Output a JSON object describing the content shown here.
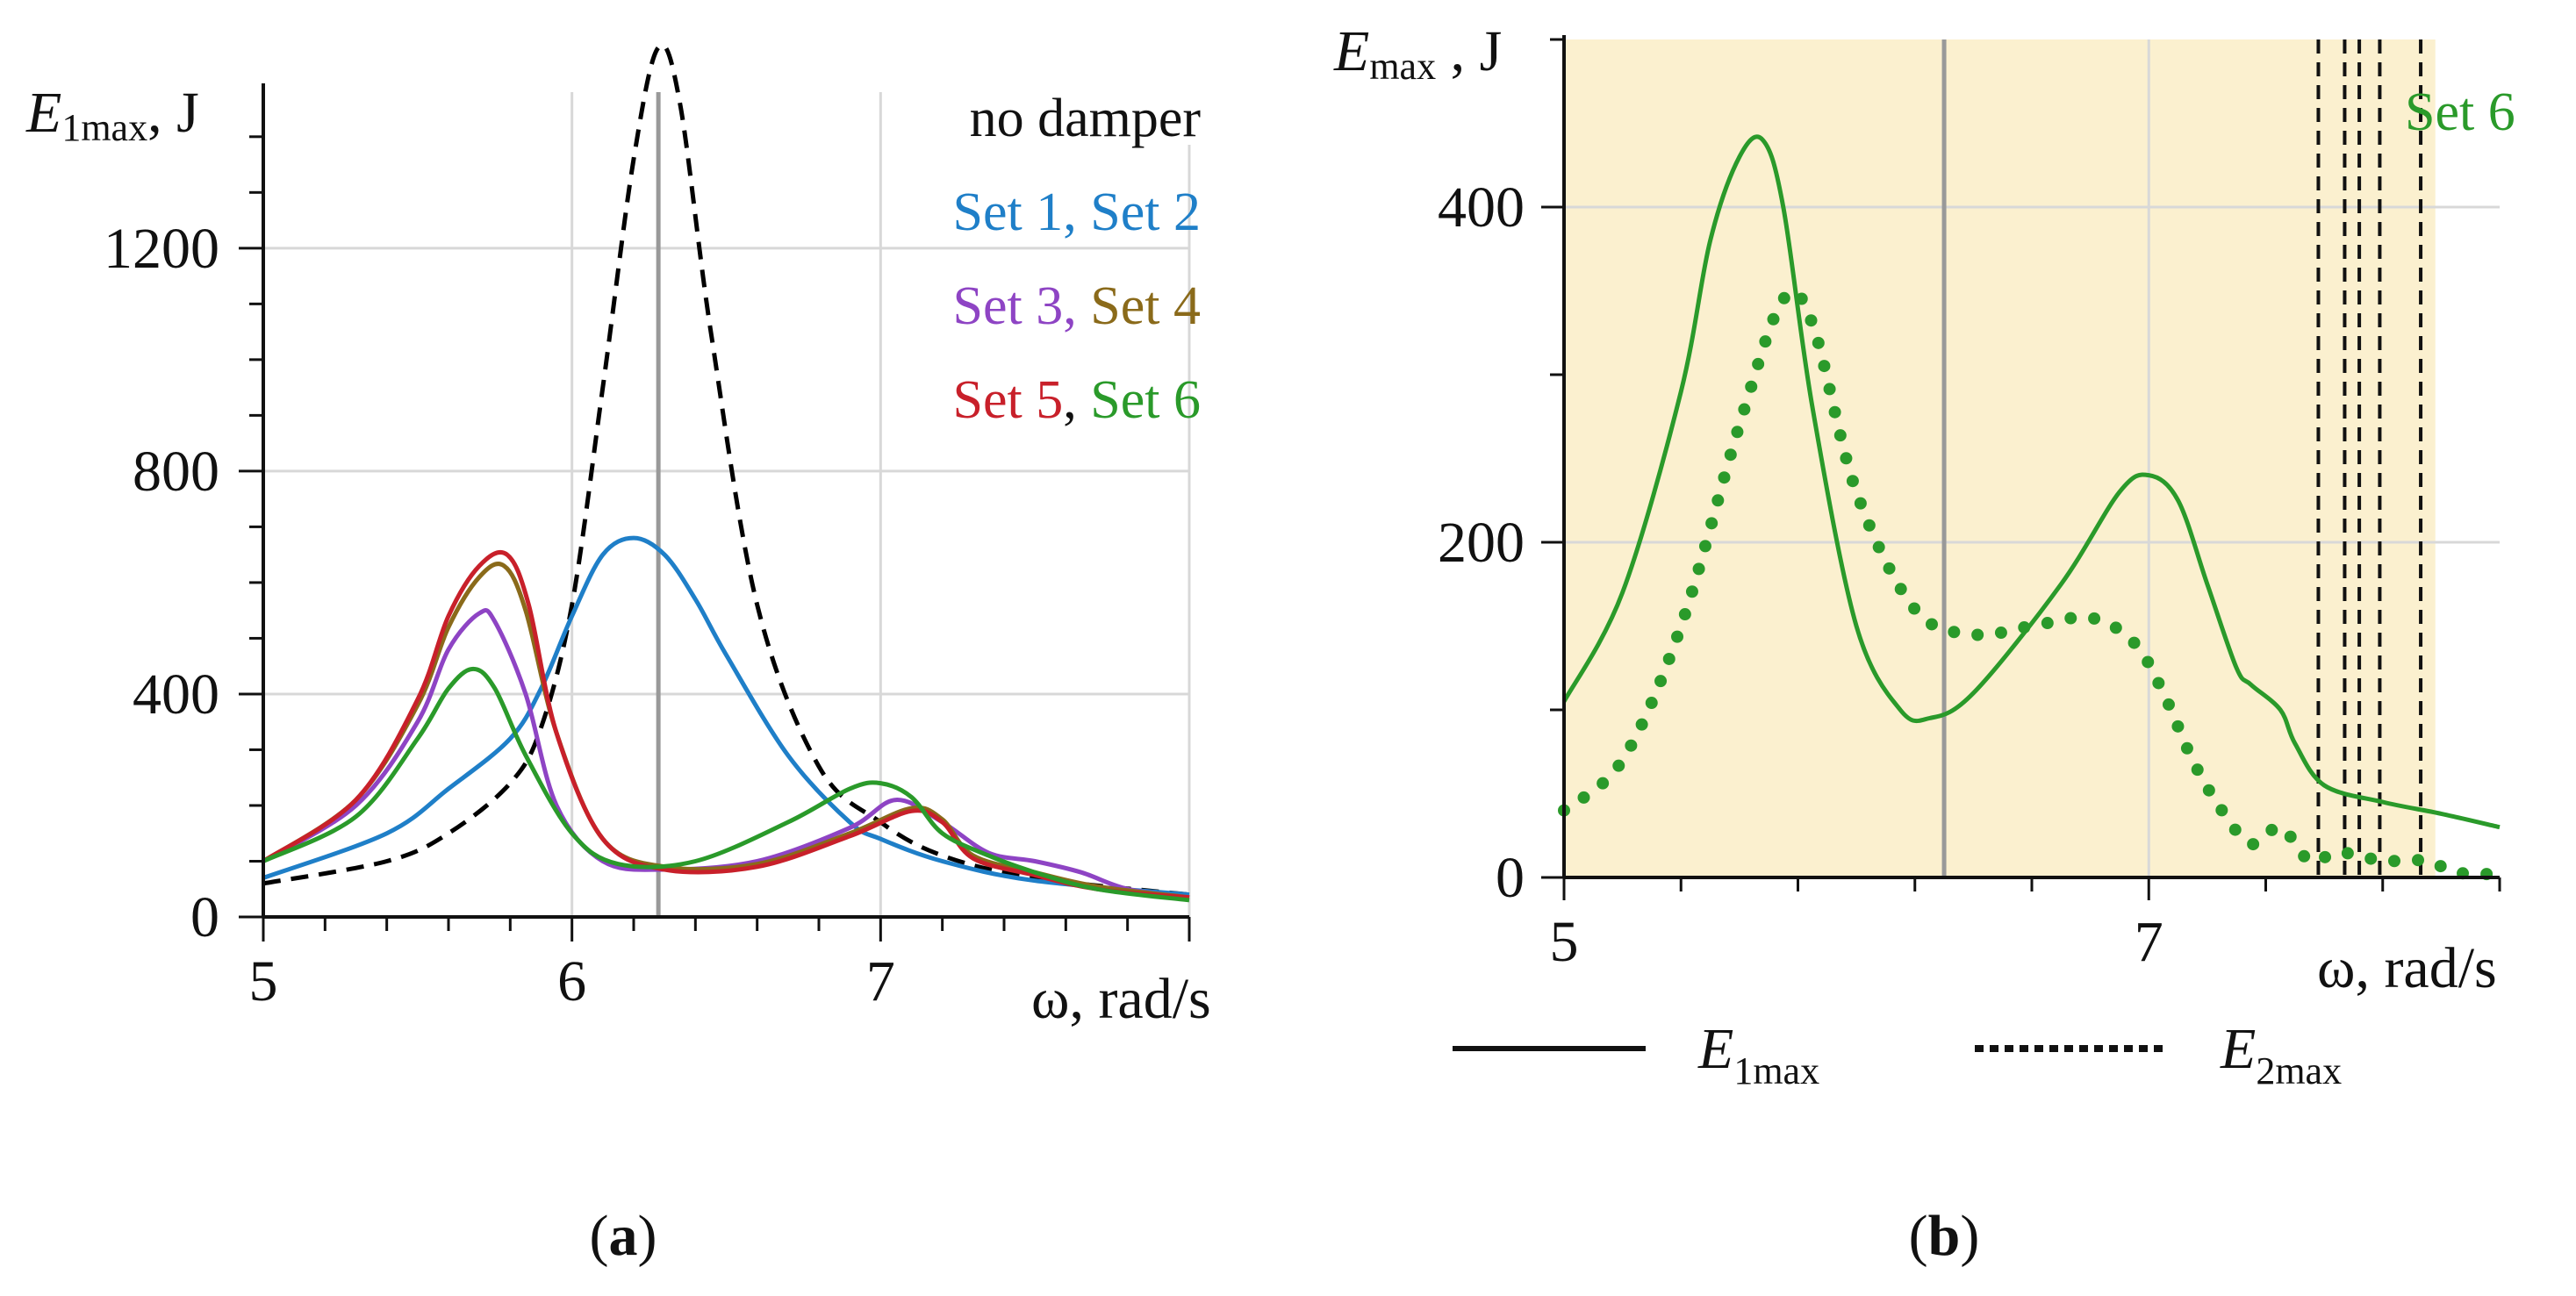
{
  "captions": {
    "a": "a",
    "b": "b"
  },
  "colors": {
    "set1": "#1f7fc8",
    "set2": "#1f7fc8",
    "set3": "#8e44c4",
    "set4": "#8a6a1a",
    "set5": "#c8202a",
    "set6": "#2a9a2a",
    "no_damper": "#000000",
    "shade_b": "#fbf0cf"
  },
  "chart_data": [
    {
      "type": "line",
      "panel": "a",
      "ylabel": {
        "main": "E",
        "sub": "1max",
        "unit": ", J"
      },
      "xlabel": "ω, rad/s",
      "xlim": [
        5,
        8
      ],
      "ylim": [
        0,
        1480
      ],
      "x_ticks": [
        "5",
        "6",
        "7"
      ],
      "x_tick_values": [
        5,
        6,
        7
      ],
      "y_ticks": [
        "0",
        "400",
        "800",
        "1200"
      ],
      "y_tick_values": [
        0,
        400,
        800,
        1200
      ],
      "vertical_line_x": 6.28,
      "legend": [
        [
          {
            "text": "no damper",
            "color": "#111111"
          }
        ],
        [
          {
            "text": "Set 1, ",
            "color": "#1f7fc8"
          },
          {
            "text": "Set 2",
            "color": "#1f7fc8"
          }
        ],
        [
          {
            "text": "Set 3, ",
            "color": "#8e44c4"
          },
          {
            "text": "Set 4",
            "color": "#8a6a1a"
          }
        ],
        [
          {
            "text": "Set 5",
            "color": "#c8202a"
          },
          {
            "text": ", ",
            "color": "#111111"
          },
          {
            "text": "Set 6",
            "color": "#2a9a2a"
          }
        ]
      ],
      "series": [
        {
          "name": "no damper",
          "color": "#000000",
          "dash": "dashed",
          "x": [
            5.0,
            5.4,
            5.6,
            5.8,
            5.9,
            6.0,
            6.1,
            6.2,
            6.28,
            6.35,
            6.45,
            6.6,
            6.8,
            7.0,
            7.2,
            7.5,
            8.0
          ],
          "y": [
            60,
            100,
            150,
            240,
            340,
            560,
            950,
            1360,
            1560,
            1460,
            1050,
            560,
            270,
            170,
            110,
            70,
            40
          ]
        },
        {
          "name": "Set 1",
          "color": "#1f7fc8",
          "dash": "solid",
          "x": [
            5.0,
            5.4,
            5.6,
            5.8,
            5.9,
            6.0,
            6.1,
            6.2,
            6.3,
            6.4,
            6.5,
            6.7,
            6.9,
            7.0,
            7.2,
            7.5,
            8.0
          ],
          "y": [
            70,
            150,
            230,
            320,
            410,
            540,
            650,
            680,
            650,
            570,
            470,
            290,
            170,
            140,
            100,
            65,
            40
          ]
        },
        {
          "name": "Set 3",
          "color": "#8e44c4",
          "dash": "solid",
          "x": [
            5.0,
            5.3,
            5.5,
            5.6,
            5.7,
            5.75,
            5.85,
            5.95,
            6.1,
            6.3,
            6.6,
            6.9,
            7.05,
            7.2,
            7.35,
            7.5,
            7.65,
            7.8,
            8.0
          ],
          "y": [
            100,
            200,
            350,
            480,
            545,
            530,
            400,
            200,
            100,
            85,
            100,
            160,
            210,
            170,
            115,
            100,
            80,
            50,
            35
          ]
        },
        {
          "name": "Set 4",
          "color": "#8a6a1a",
          "dash": "solid",
          "x": [
            5.0,
            5.3,
            5.5,
            5.6,
            5.7,
            5.78,
            5.85,
            5.95,
            6.1,
            6.3,
            6.6,
            6.9,
            7.1,
            7.2,
            7.3,
            7.5,
            7.7,
            8.0
          ],
          "y": [
            100,
            210,
            380,
            520,
            610,
            630,
            550,
            330,
            140,
            90,
            95,
            150,
            195,
            175,
            110,
            80,
            55,
            35
          ]
        },
        {
          "name": "Set 5",
          "color": "#c8202a",
          "dash": "solid",
          "x": [
            5.0,
            5.3,
            5.5,
            5.6,
            5.7,
            5.79,
            5.86,
            5.95,
            6.1,
            6.3,
            6.6,
            6.9,
            7.1,
            7.2,
            7.3,
            7.5,
            7.7,
            8.0
          ],
          "y": [
            100,
            210,
            390,
            540,
            630,
            650,
            560,
            330,
            140,
            85,
            90,
            145,
            190,
            170,
            105,
            75,
            50,
            35
          ]
        },
        {
          "name": "Set 6",
          "color": "#2a9a2a",
          "dash": "solid",
          "x": [
            5.0,
            5.3,
            5.5,
            5.6,
            5.68,
            5.75,
            5.85,
            6.0,
            6.15,
            6.4,
            6.7,
            6.9,
            7.0,
            7.1,
            7.2,
            7.35,
            7.5,
            7.7,
            8.0
          ],
          "y": [
            100,
            180,
            320,
            410,
            445,
            410,
            290,
            150,
            95,
            100,
            170,
            230,
            240,
            215,
            150,
            110,
            80,
            50,
            30
          ]
        }
      ]
    },
    {
      "type": "line",
      "panel": "b",
      "ylabel": {
        "main": "E",
        "sub": "max",
        "unit": " , J"
      },
      "xlabel": "ω, rad/s",
      "xlim": [
        5,
        8.2
      ],
      "ylim": [
        0,
        500
      ],
      "x_ticks": [
        "5",
        "7"
      ],
      "x_tick_values": [
        5,
        7
      ],
      "y_ticks": [
        "0",
        "200",
        "400"
      ],
      "y_tick_values": [
        0,
        200,
        400
      ],
      "vertical_line_x": 6.3,
      "shaded": true,
      "annotation": "Set 6",
      "dashed_verticals_x": [
        7.58,
        7.67,
        7.72,
        7.79,
        7.93
      ],
      "legend": [
        {
          "label_main": "E",
          "label_sub": "1max",
          "style": "solid"
        },
        {
          "label_main": "E",
          "label_sub": "2max",
          "style": "dotted"
        }
      ],
      "series": [
        {
          "name": "E1max",
          "color": "#2a9a2a",
          "dash": "solid",
          "x": [
            5.0,
            5.2,
            5.4,
            5.5,
            5.6,
            5.68,
            5.75,
            5.85,
            6.0,
            6.15,
            6.25,
            6.4,
            6.7,
            6.9,
            7.0,
            7.1,
            7.2,
            7.3,
            7.35,
            7.45,
            7.5,
            7.6,
            7.8,
            8.0,
            8.2
          ],
          "y": [
            105,
            170,
            290,
            380,
            430,
            440,
            400,
            280,
            150,
            100,
            95,
            110,
            175,
            230,
            240,
            225,
            175,
            125,
            115,
            100,
            80,
            55,
            45,
            38,
            30
          ]
        },
        {
          "name": "E2max",
          "color": "#2a9a2a",
          "dash": "dotted",
          "x": [
            5.0,
            5.2,
            5.4,
            5.6,
            5.75,
            5.85,
            6.0,
            6.2,
            6.4,
            6.6,
            6.8,
            6.95,
            7.05,
            7.15,
            7.25,
            7.35,
            7.45,
            7.55,
            7.65,
            7.8,
            7.95,
            8.05,
            8.2
          ],
          "y": [
            40,
            70,
            150,
            270,
            345,
            330,
            230,
            160,
            145,
            150,
            155,
            140,
            110,
            70,
            40,
            20,
            30,
            10,
            15,
            10,
            10,
            3,
            2
          ]
        }
      ]
    }
  ]
}
